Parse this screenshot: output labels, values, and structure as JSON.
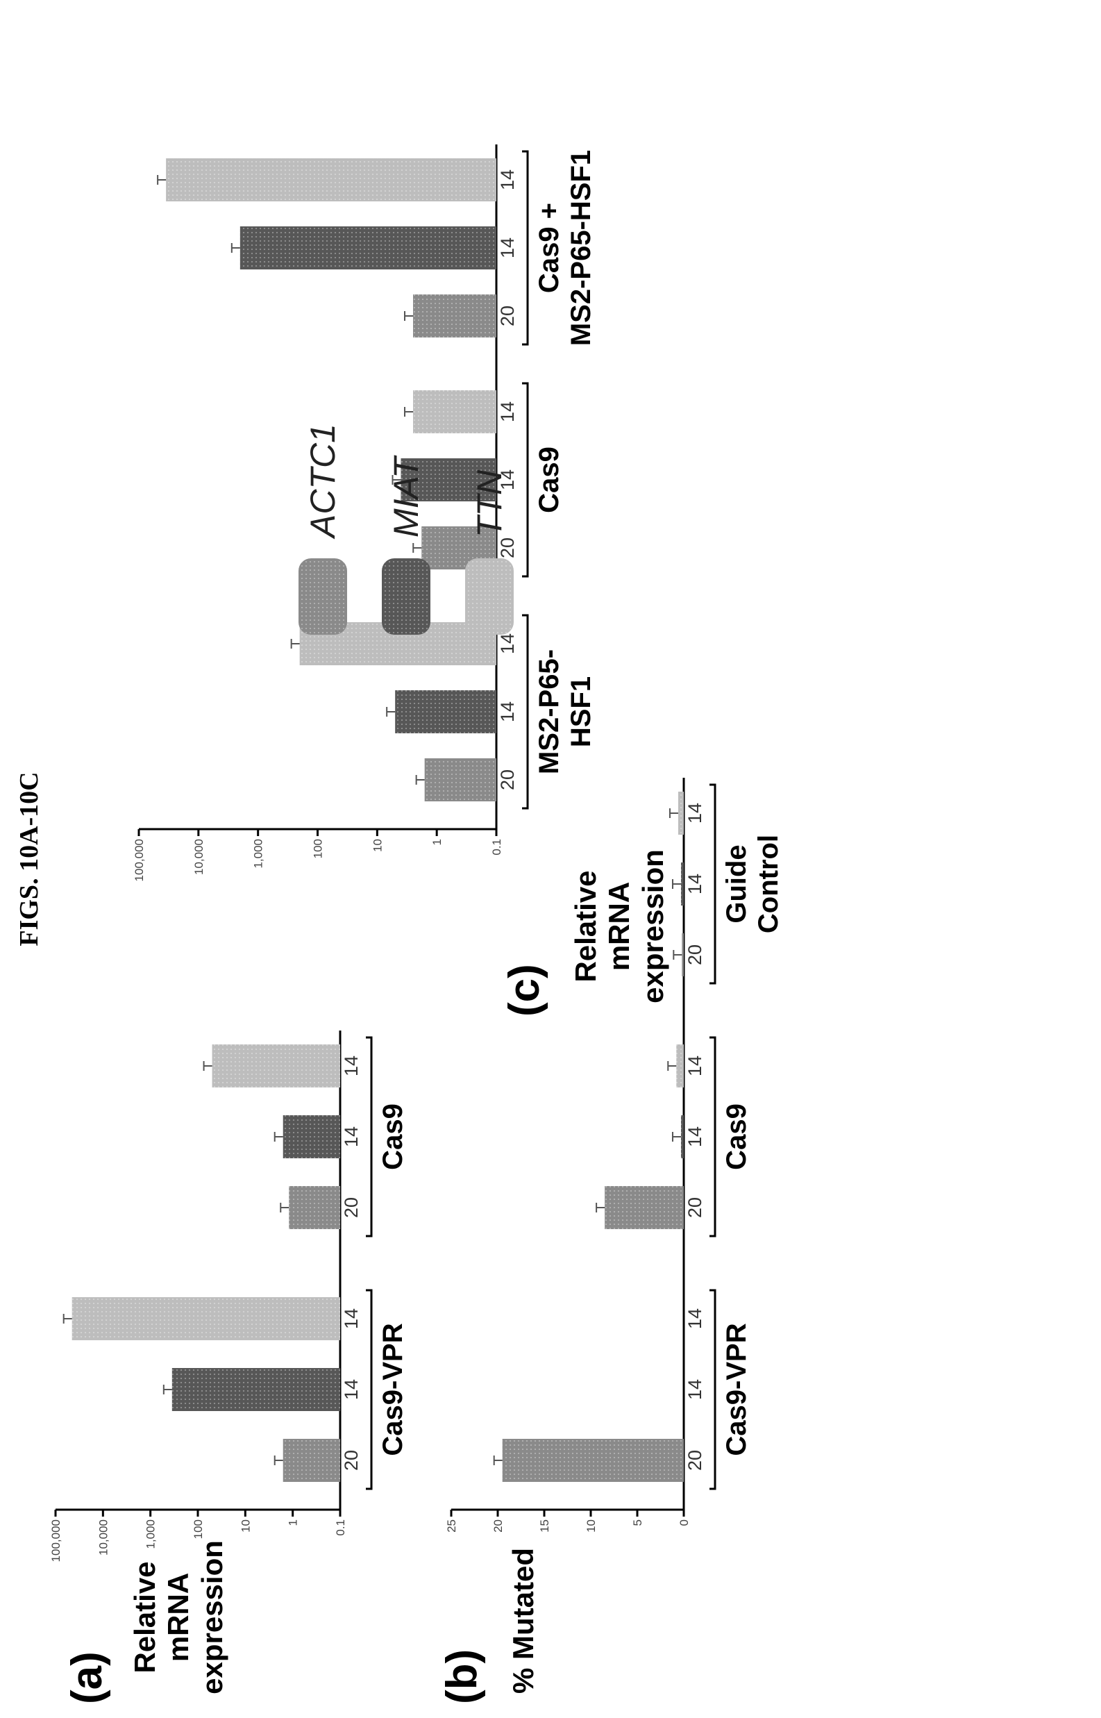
{
  "figure_title": "FIGS. 10A-10C",
  "colors": {
    "ACTC1": "#8a8a8a",
    "MIAT": "#575757",
    "TTN": "#bdbdbd",
    "axis": "#000000"
  },
  "chart_data": [
    {
      "id": "a",
      "panel_label": "(a)",
      "type": "bar",
      "ylabel": "Relative mRNA expression",
      "yscale": "log",
      "ylim": [
        0.1,
        100000
      ],
      "yticks": [
        "100,000",
        "10,000",
        "1,000",
        "100",
        "10",
        "1",
        "0.1"
      ],
      "groups": [
        {
          "name": "Cas9-VPR",
          "categories": [
            "20",
            "14",
            "14"
          ],
          "values": [
            1.6,
            350,
            45000
          ],
          "colors": [
            "ACTC1",
            "MIAT",
            "TTN"
          ]
        },
        {
          "name": "Cas9",
          "categories": [
            "20",
            "14",
            "14"
          ],
          "values": [
            1.2,
            1.6,
            50
          ],
          "colors": [
            "ACTC1",
            "MIAT",
            "TTN"
          ]
        }
      ]
    },
    {
      "id": "b",
      "panel_label": "(b)",
      "type": "bar",
      "ylabel": "% Mutated",
      "yscale": "linear",
      "ylim": [
        0,
        25
      ],
      "yticks": [
        "25",
        "20",
        "15",
        "10",
        "5",
        "0"
      ],
      "groups": [
        {
          "name": "Cas9-VPR",
          "categories": [
            "20",
            "14",
            "14"
          ],
          "values": [
            19.5,
            0,
            0
          ],
          "colors": [
            "ACTC1",
            "MIAT",
            "TTN"
          ]
        },
        {
          "name": "Cas9",
          "categories": [
            "20",
            "14",
            "14"
          ],
          "values": [
            8.5,
            0.3,
            0.8
          ],
          "colors": [
            "ACTC1",
            "MIAT",
            "TTN"
          ]
        },
        {
          "name": "Guide Control",
          "categories": [
            "20",
            "14",
            "14"
          ],
          "values": [
            0.2,
            0.3,
            0.6
          ],
          "colors": [
            "ACTC1",
            "MIAT",
            "TTN"
          ]
        }
      ]
    },
    {
      "id": "c",
      "panel_label": "(c)",
      "type": "bar",
      "ylabel": "Relative mRNA expression",
      "yscale": "log",
      "ylim": [
        0.1,
        100000
      ],
      "yticks": [
        "100,000",
        "10,000",
        "1,000",
        "100",
        "10",
        "1",
        "0.1"
      ],
      "groups": [
        {
          "name": "MS2-P65-HSF1",
          "categories": [
            "20",
            "14",
            "14"
          ],
          "values": [
            1.6,
            5,
            200
          ],
          "colors": [
            "ACTC1",
            "MIAT",
            "TTN"
          ]
        },
        {
          "name": "Cas9",
          "categories": [
            "20",
            "14",
            "14"
          ],
          "values": [
            1.8,
            4,
            2.5
          ],
          "colors": [
            "ACTC1",
            "MIAT",
            "TTN"
          ]
        },
        {
          "name": "Cas9 + MS2-P65-HSF1",
          "categories": [
            "20",
            "14",
            "14"
          ],
          "values": [
            2.5,
            2000,
            35000
          ],
          "colors": [
            "ACTC1",
            "MIAT",
            "TTN"
          ]
        }
      ]
    }
  ],
  "legend": [
    "ACTC1",
    "MIAT",
    "TTN"
  ]
}
